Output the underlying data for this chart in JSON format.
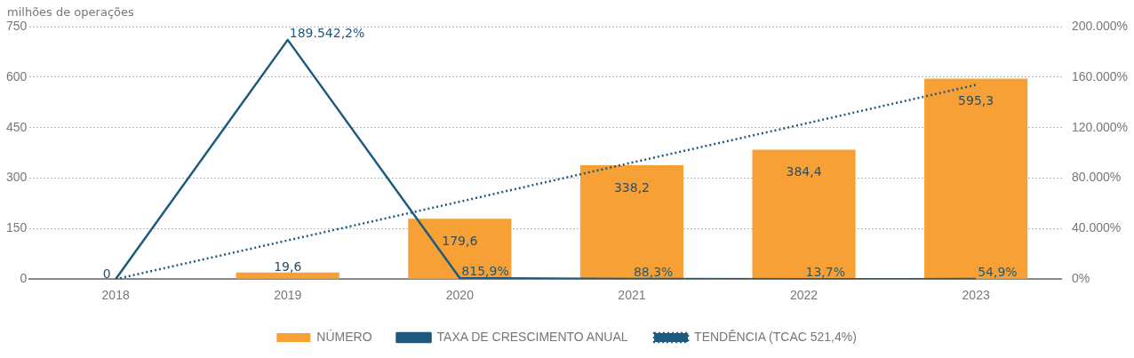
{
  "chart_data": {
    "type": "bar",
    "ylabel": "milhões de operações",
    "categories": [
      "2018",
      "2019",
      "2020",
      "2021",
      "2022",
      "2023"
    ],
    "series": [
      {
        "name": "NÚMERO",
        "color": "#f7a035",
        "values": [
          0,
          19.6,
          179.6,
          338.2,
          384.4,
          595.3
        ],
        "value_labels": [
          "0",
          "19,6",
          "179,6",
          "338,2",
          "384,4",
          "595,3"
        ]
      },
      {
        "name": "TAXA DE CRESCIMENTO ANUAL",
        "type": "line",
        "axis": "y2",
        "color": "#1d5a7e",
        "line_style": "solid",
        "values": [
          0,
          189542.2,
          815.9,
          88.3,
          13.7,
          54.9
        ],
        "value_labels": [
          null,
          "189.542,2%",
          "815,9%",
          "88,3%",
          "13,7%",
          "54,9%"
        ]
      },
      {
        "name": "TENDÊNCIA (TCAC 521,4%)",
        "type": "line",
        "color": "#1d5a7e",
        "line_style": "dotted",
        "values": [
          0,
          115,
          230,
          346,
          461,
          577
        ]
      }
    ],
    "ylim": [
      0,
      750
    ],
    "yticks": [
      0,
      150,
      300,
      450,
      600,
      750
    ],
    "y2lim": [
      0,
      200000
    ],
    "y2ticks": [
      {
        "value": 0,
        "label": "0%"
      },
      {
        "value": 40000,
        "label": "40.000%"
      },
      {
        "value": 80000,
        "label": "80.000%"
      },
      {
        "value": 120000,
        "label": "120.000%"
      },
      {
        "value": 160000,
        "label": "160.000%"
      },
      {
        "value": 200000,
        "label": "200.000%"
      }
    ],
    "grid": "y",
    "legend": "bottom",
    "marker": "none"
  }
}
